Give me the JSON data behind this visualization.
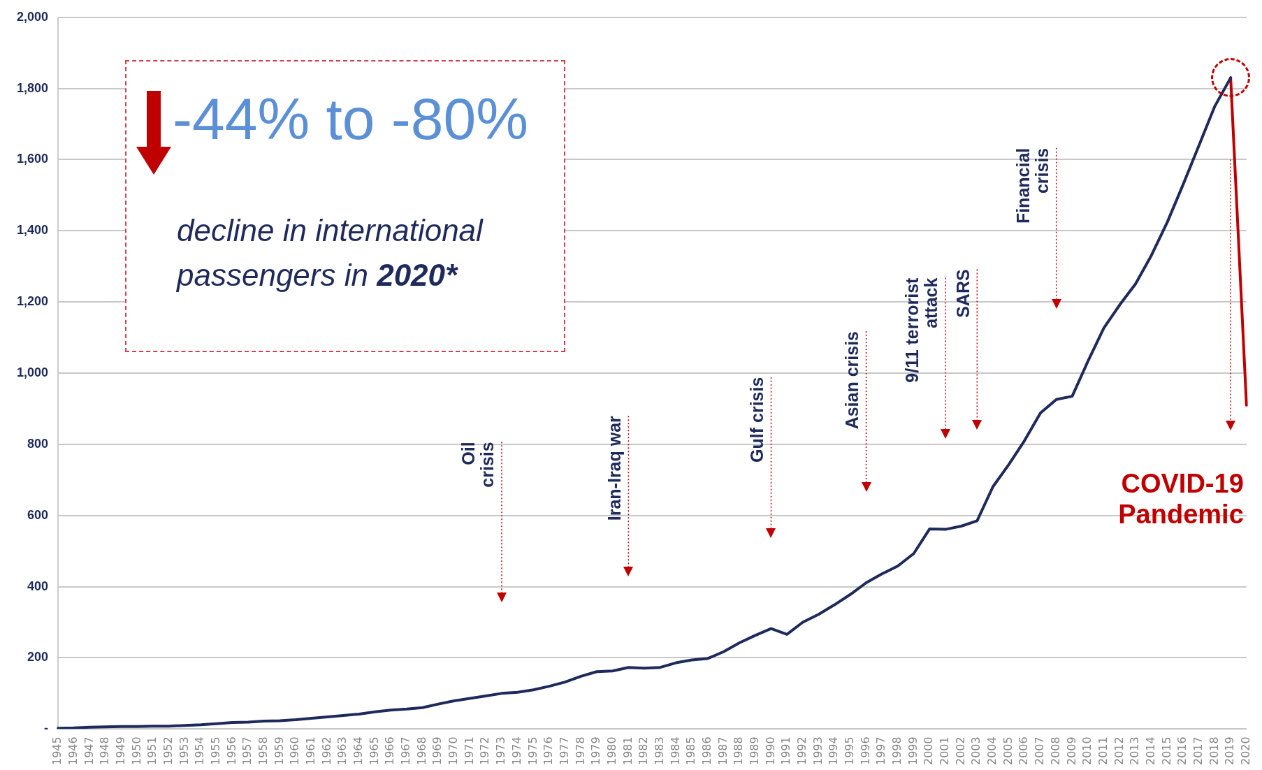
{
  "chart_data": {
    "type": "line",
    "categories": [
      "1945",
      "1946",
      "1947",
      "1948",
      "1949",
      "1950",
      "1951",
      "1952",
      "1953",
      "1954",
      "1955",
      "1956",
      "1957",
      "1958",
      "1959",
      "1960",
      "1961",
      "1962",
      "1963",
      "1964",
      "1965",
      "1966",
      "1967",
      "1968",
      "1969",
      "1970",
      "1971",
      "1972",
      "1973",
      "1974",
      "1975",
      "1976",
      "1977",
      "1978",
      "1979",
      "1980",
      "1981",
      "1982",
      "1983",
      "1984",
      "1985",
      "1986",
      "1987",
      "1988",
      "1989",
      "1990",
      "1991",
      "1992",
      "1993",
      "1994",
      "1995",
      "1996",
      "1997",
      "1998",
      "1999",
      "2000",
      "2001",
      "2002",
      "2003",
      "2004",
      "2005",
      "2006",
      "2007",
      "2008",
      "2009",
      "2010",
      "2011",
      "2012",
      "2013",
      "2014",
      "2015",
      "2016",
      "2017",
      "2018",
      "2019",
      "2020"
    ],
    "series": [
      {
        "color": "#1f2a5c",
        "values": [
          2,
          3,
          5,
          6,
          7,
          7,
          8,
          8,
          10,
          12,
          15,
          18,
          19,
          22,
          23,
          26,
          30,
          34,
          38,
          42,
          48,
          53,
          56,
          60,
          70,
          79,
          86,
          93,
          100,
          103,
          110,
          120,
          132,
          148,
          161,
          163,
          173,
          171,
          173,
          186,
          194,
          198,
          217,
          242,
          263,
          282,
          266,
          300,
          322,
          349,
          378,
          411,
          436,
          458,
          493,
          562,
          561,
          570,
          585,
          681,
          743,
          811,
          888,
          926,
          935,
          1034,
          1127,
          1192,
          1251,
          1331,
          1424,
          1530,
          1640,
          1750,
          1830,
          null
        ]
      },
      {
        "color": "#c00000",
        "values": [
          null,
          null,
          null,
          null,
          null,
          null,
          null,
          null,
          null,
          null,
          null,
          null,
          null,
          null,
          null,
          null,
          null,
          null,
          null,
          null,
          null,
          null,
          null,
          null,
          null,
          null,
          null,
          null,
          null,
          null,
          null,
          null,
          null,
          null,
          null,
          null,
          null,
          null,
          null,
          null,
          null,
          null,
          null,
          null,
          null,
          null,
          null,
          null,
          null,
          null,
          null,
          null,
          null,
          null,
          null,
          null,
          null,
          null,
          null,
          null,
          null,
          null,
          null,
          null,
          null,
          null,
          null,
          null,
          null,
          null,
          null,
          null,
          null,
          null,
          1830,
          910
        ]
      }
    ],
    "ylim": [
      0,
      2000
    ],
    "yticks": [
      {
        "value": 0,
        "label": "-"
      },
      {
        "value": 200,
        "label": "200"
      },
      {
        "value": 400,
        "label": "400"
      },
      {
        "value": 600,
        "label": "600"
      },
      {
        "value": 800,
        "label": "800"
      },
      {
        "value": 1000,
        "label": "1,000"
      },
      {
        "value": 1200,
        "label": "1,200"
      },
      {
        "value": 1400,
        "label": "1,400"
      },
      {
        "value": 1600,
        "label": "1,600"
      },
      {
        "value": 1800,
        "label": "1,800"
      },
      {
        "value": 2000,
        "label": "2,000"
      }
    ],
    "grid": "y",
    "legend": false,
    "marker": "none",
    "line_style": "solid",
    "annotations": [
      "-44% to -80%",
      "decline in international passengers in 2020*"
    ],
    "ref_lines": [
      {
        "axis": "x",
        "value": "1973",
        "label": "Oil\ncrisis",
        "color": "#c00000",
        "line_style": "dotted"
      },
      {
        "axis": "x",
        "value": "1981",
        "label": "Iran-Iraq war",
        "color": "#c00000",
        "line_style": "dotted"
      },
      {
        "axis": "x",
        "value": "1990",
        "label": "Gulf crisis",
        "color": "#c00000",
        "line_style": "dotted"
      },
      {
        "axis": "x",
        "value": "1996",
        "label": "Asian crisis",
        "color": "#c00000",
        "line_style": "dotted"
      },
      {
        "axis": "x",
        "value": "2001",
        "label": "9/11 terrorist\nattack",
        "color": "#c00000",
        "line_style": "dotted"
      },
      {
        "axis": "x",
        "value": "2003",
        "label": "SARS",
        "color": "#c00000",
        "line_style": "dotted"
      },
      {
        "axis": "x",
        "value": "2008",
        "label": "Financial\ncrisis",
        "color": "#c00000",
        "line_style": "dotted"
      },
      {
        "axis": "x",
        "value": "2019",
        "label": "COVID-19\nPandemic",
        "color": "#c00000",
        "line_style": "dotted"
      }
    ]
  }
}
